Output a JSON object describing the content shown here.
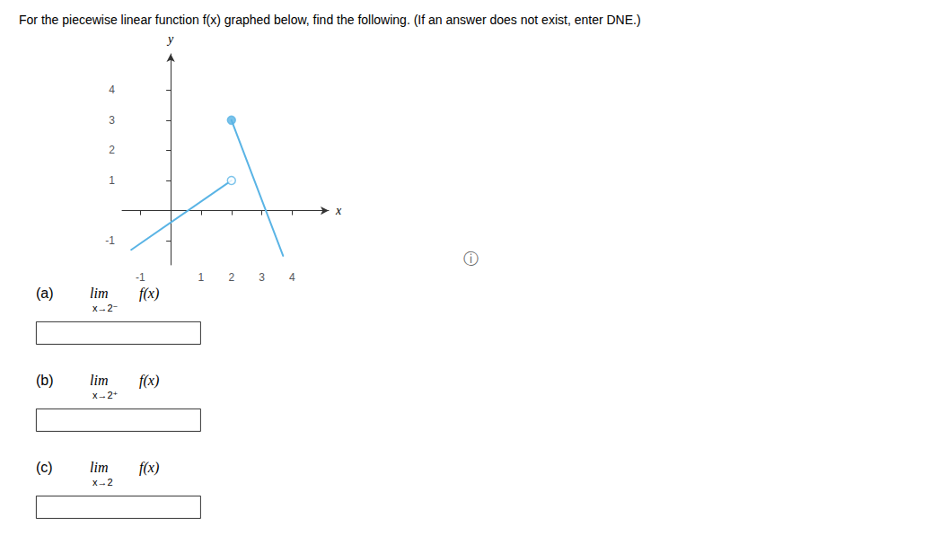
{
  "chart_data": {
    "type": "line",
    "title": "For the piecewise linear function f(x) graphed below, find the following. (If an answer does not exist, enter DNE.)",
    "xlabel": "x",
    "ylabel": "y",
    "xlim": [
      -1.6,
      5.2
    ],
    "ylim": [
      -1.8,
      5.2
    ],
    "xticks": [
      -1,
      1,
      2,
      3,
      4
    ],
    "yticks": [
      -1,
      1,
      2,
      3,
      4
    ],
    "grid": false,
    "series": [
      {
        "type": "line",
        "color": "#5ab4e5",
        "x": [
          -1.3,
          2
        ],
        "values": [
          -1.3,
          1
        ]
      },
      {
        "type": "line",
        "color": "#5ab4e5",
        "x": [
          2,
          3.7
        ],
        "values": [
          3,
          -1.5
        ]
      },
      {
        "type": "scatter",
        "marker": "open_circle",
        "color": "#5ab4e5",
        "x": [
          2
        ],
        "values": [
          1
        ]
      },
      {
        "type": "scatter",
        "marker": "circle",
        "color": "#5ab4e5",
        "x": [
          2
        ],
        "values": [
          3
        ]
      }
    ],
    "annotations": [
      {
        "label": "(a)",
        "text": "lim",
        "sub": "x→2⁻",
        "after": "f(x)"
      },
      {
        "label": "(b)",
        "text": "lim",
        "sub": "x→2⁺",
        "after": "f(x)"
      },
      {
        "label": "(c)",
        "text": "lim",
        "sub": "x→2",
        "after": "f(x)"
      },
      {
        "text": "ⓘ"
      }
    ]
  }
}
